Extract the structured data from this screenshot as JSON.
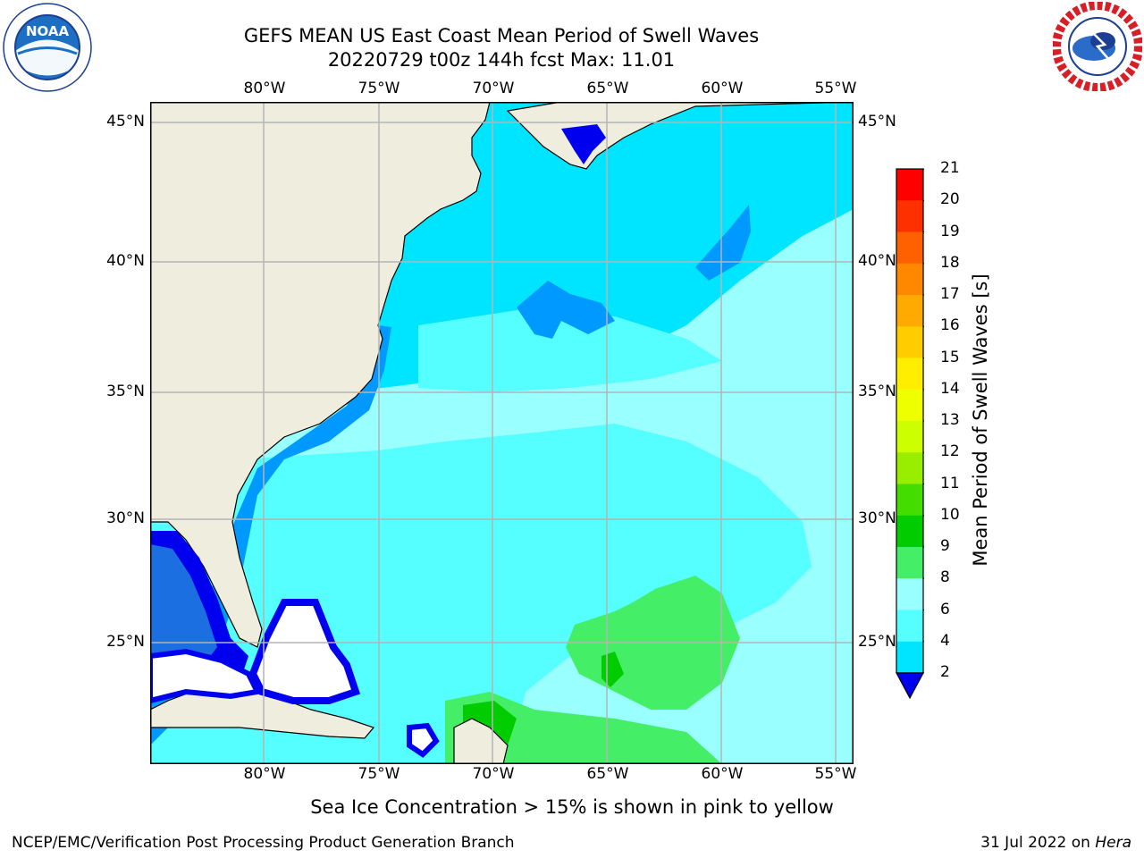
{
  "title": {
    "line1": "GEFS MEAN US East Coast Mean Period of Swell Waves",
    "line2": "20220729 t00z 144h fcst   Max: 11.01"
  },
  "logos": {
    "left": {
      "name": "noaa-logo",
      "text": "NOAA"
    },
    "right": {
      "name": "nws-logo",
      "text": "NATIONAL WEATHER SERVICE"
    }
  },
  "map": {
    "lon_labels": [
      "80°W",
      "75°W",
      "70°W",
      "65°W",
      "60°W",
      "55°W"
    ],
    "lat_labels": [
      "45°N",
      "40°N",
      "35°N",
      "30°N",
      "25°N"
    ],
    "colors": {
      "land": "#efedde",
      "coast": "#000000",
      "grid": "#b4b4b4",
      "no_data": "#ffffff"
    }
  },
  "colorbar": {
    "title": "Mean Period of Swell Waves [s]",
    "labels": [
      "21",
      "20",
      "19",
      "18",
      "17",
      "16",
      "15",
      "14",
      "13",
      "12",
      "11",
      "10",
      "9",
      "8",
      "6",
      "4",
      "2"
    ],
    "colors": [
      "#ff0000",
      "#ff3000",
      "#ff6000",
      "#ff8800",
      "#ffaa00",
      "#ffcc00",
      "#ffee00",
      "#eeff00",
      "#ccff00",
      "#99ee00",
      "#44dd00",
      "#00cc00",
      "#44ee66",
      "#99ffff",
      "#55ffff",
      "#00e5ff",
      "#0099ff",
      "#0055ff"
    ],
    "under_color": "#0000ee"
  },
  "note": "Sea Ice Concentration > 15% is shown in pink to yellow",
  "footer": {
    "left": "NCEP/EMC/Verification Post Processing Product Generation Branch",
    "right_date": "31 Jul 2022 on",
    "right_host": "Hera"
  }
}
